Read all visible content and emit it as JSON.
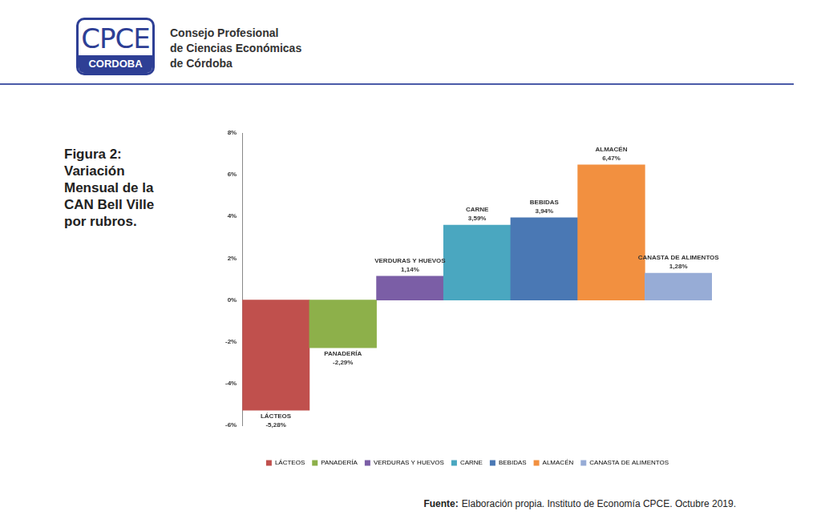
{
  "logo": {
    "top": "CPCE",
    "bottom": "CORDOBA"
  },
  "organization": [
    "Consejo Profesional",
    "de Ciencias Económicas",
    "de Córdoba"
  ],
  "caption": [
    "Figura 2:",
    "Variación",
    "Mensual de la",
    "CAN Bell Ville",
    "por rubros."
  ],
  "source": {
    "label": "Fuente:",
    "text": "Elaboración propia. Instituto de Economía CPCE. Octubre 2019."
  },
  "chart_data": {
    "type": "bar",
    "categories": [
      "LÁCTEOS",
      "PANADERÍA",
      "VERDURAS Y HUEVOS",
      "CARNE",
      "BEBIDAS",
      "ALMACÉN",
      "CANASTA DE ALIMENTOS"
    ],
    "values": [
      -5.28,
      -2.29,
      1.14,
      3.59,
      3.94,
      6.47,
      1.28
    ],
    "value_labels": [
      "-5,28%",
      "-2,29%",
      "1,14%",
      "3,59%",
      "3,94%",
      "6,47%",
      "1,28%"
    ],
    "colors": [
      "#c0504d",
      "#8db04a",
      "#7b5ea6",
      "#4aa7c0",
      "#4a78b4",
      "#f29040",
      "#97acd6"
    ],
    "ylim": [
      -6,
      8
    ],
    "yticks": [
      {
        "value": -6,
        "label": "-6%"
      },
      {
        "value": -4,
        "label": "-4%"
      },
      {
        "value": -2,
        "label": "-2%"
      },
      {
        "value": 0,
        "label": "0%"
      },
      {
        "value": 2,
        "label": "2%"
      },
      {
        "value": 4,
        "label": "4%"
      },
      {
        "value": 6,
        "label": "6%"
      },
      {
        "value": 8,
        "label": "8%"
      }
    ],
    "grid": false,
    "legend": "bottom",
    "data_labels": true,
    "tick_labels": "y"
  }
}
